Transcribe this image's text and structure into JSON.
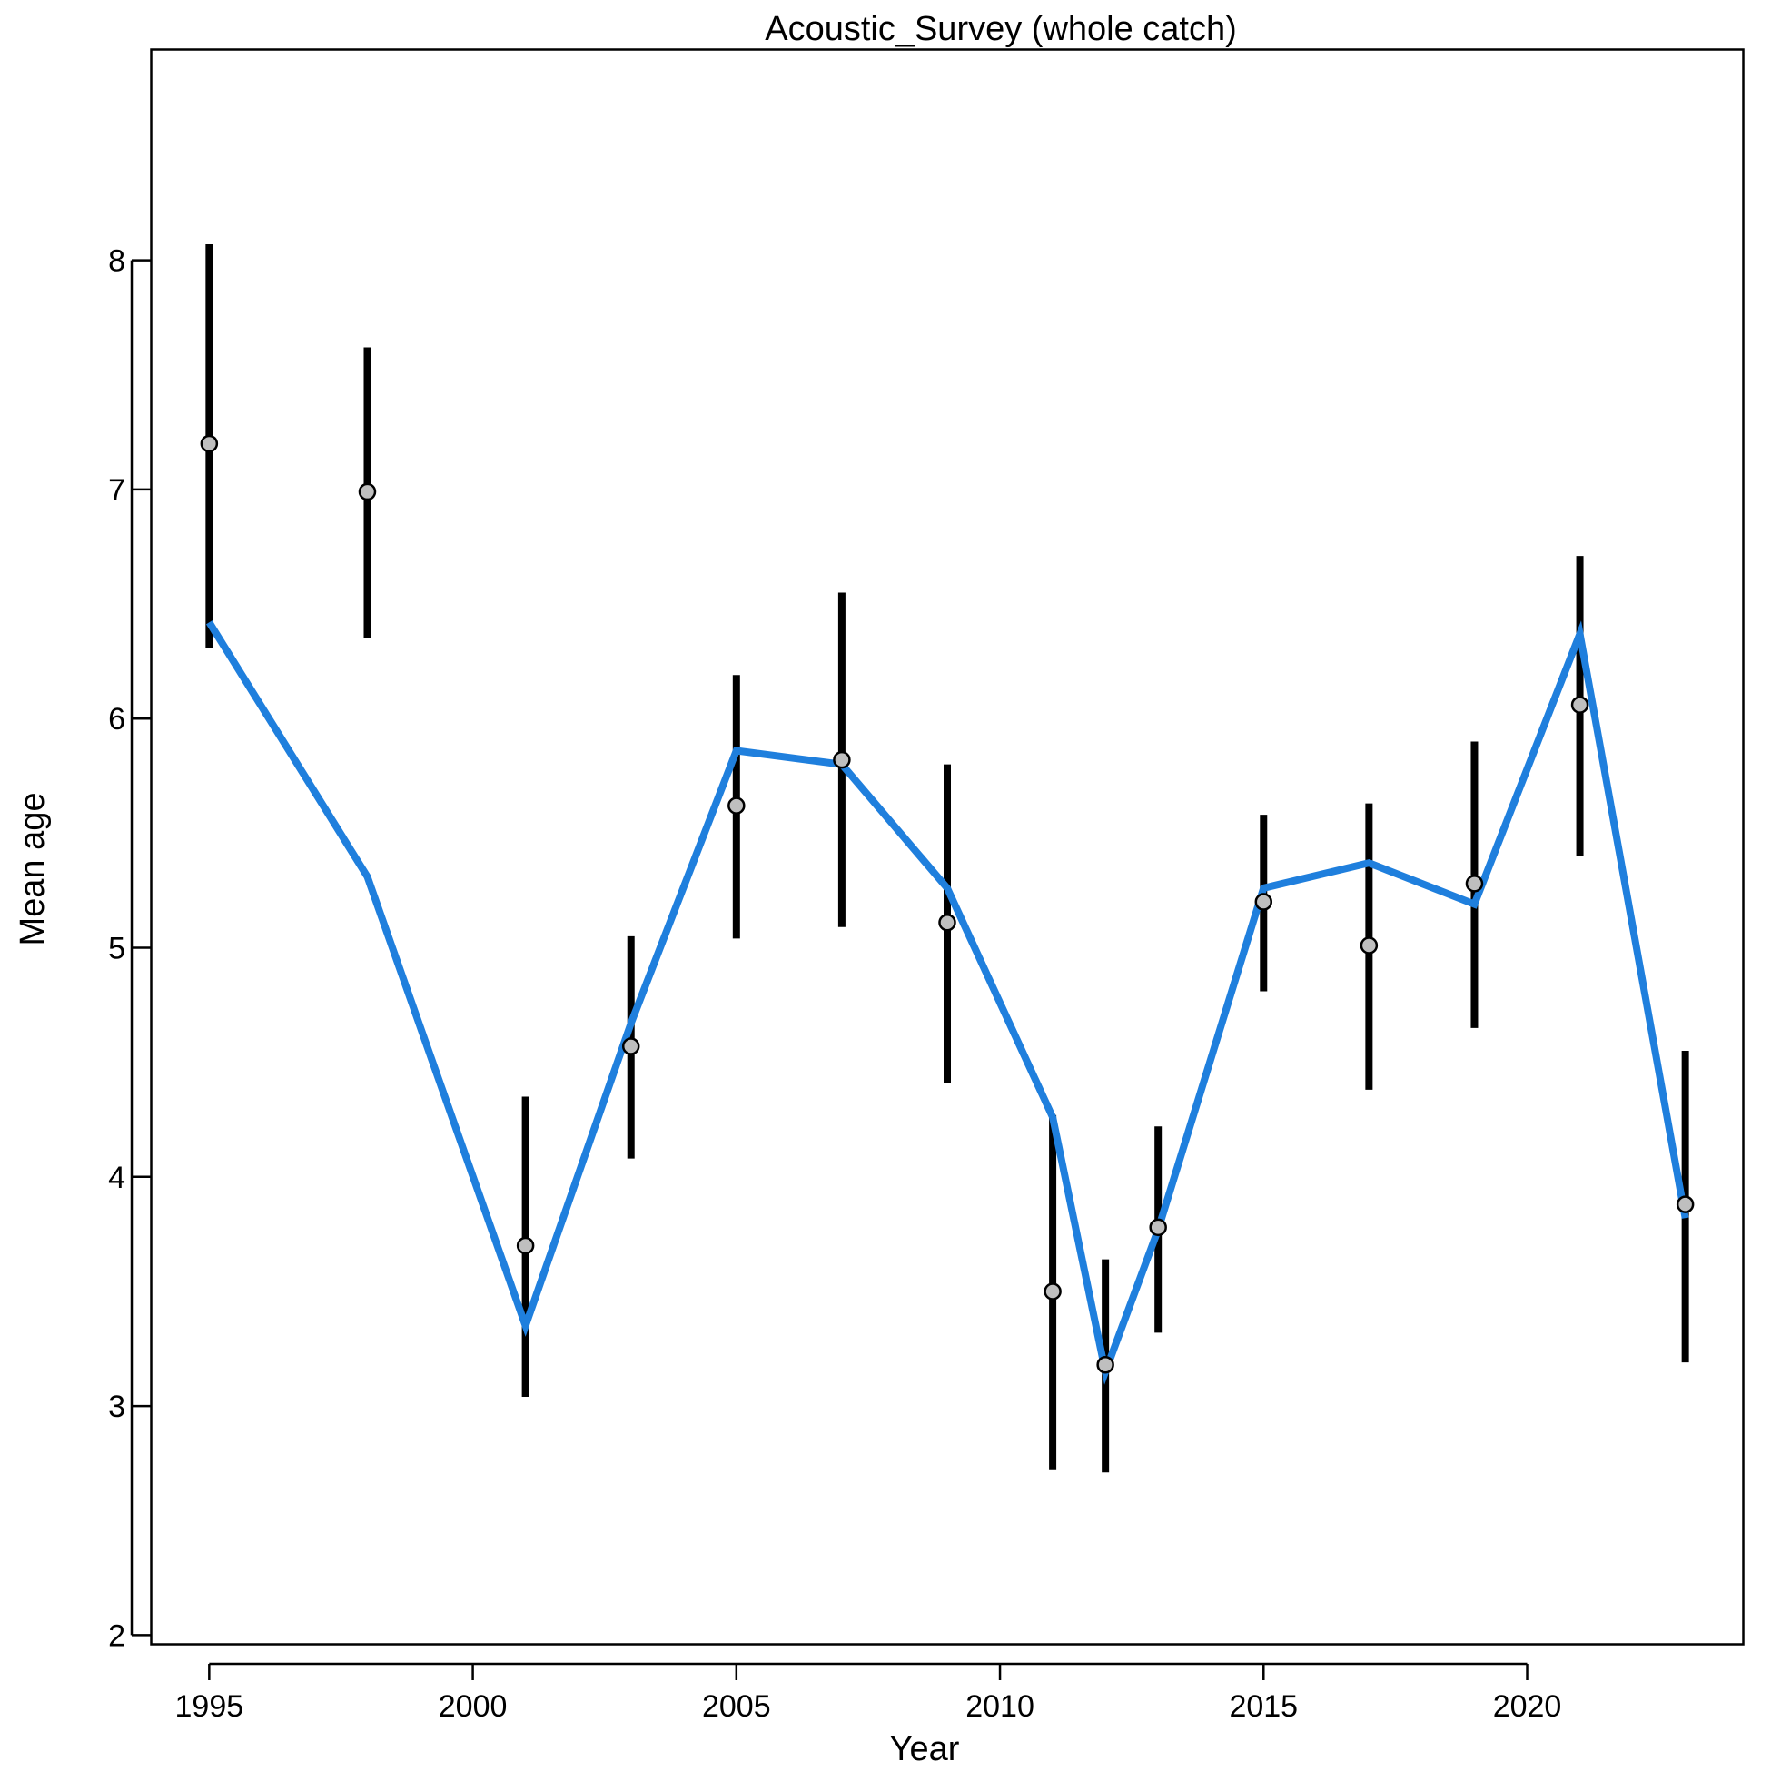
{
  "chart_data": {
    "type": "line",
    "title": "Acoustic_Survey (whole catch)",
    "xlabel": "Year",
    "ylabel": "Mean age",
    "xlim": [
      1993.9,
      2024.1
    ],
    "ylim": [
      1.96,
      8.92
    ],
    "x_ticks": [
      1995,
      2000,
      2005,
      2010,
      2015,
      2020
    ],
    "y_ticks": [
      2,
      3,
      4,
      5,
      6,
      7,
      8
    ],
    "grid": false,
    "legend": "none",
    "colors": {
      "expected_line": "#1f7fdd",
      "error_bar": "#000000",
      "point_fill": "#bfbfbf",
      "point_stroke": "#000000"
    },
    "series": [
      {
        "kind": "observed_with_interval",
        "x": [
          1995,
          1998,
          2001,
          2003,
          2005,
          2007,
          2009,
          2011,
          2012,
          2013,
          2015,
          2017,
          2019,
          2021,
          2023
        ],
        "y": [
          7.2,
          6.99,
          3.7,
          4.57,
          5.62,
          5.82,
          5.11,
          3.5,
          3.18,
          3.78,
          5.2,
          5.01,
          5.28,
          6.06,
          3.88
        ],
        "lower": [
          6.31,
          6.35,
          3.04,
          4.08,
          5.04,
          5.09,
          4.41,
          2.72,
          2.71,
          3.32,
          4.81,
          4.38,
          4.65,
          5.4,
          3.19
        ],
        "upper": [
          8.07,
          7.62,
          4.35,
          5.05,
          6.19,
          6.55,
          5.8,
          4.27,
          3.64,
          4.22,
          5.58,
          5.63,
          5.9,
          6.71,
          4.55
        ]
      },
      {
        "kind": "expected",
        "x": [
          1995,
          1998,
          2001,
          2003,
          2005,
          2007,
          2009,
          2011,
          2012,
          2013,
          2015,
          2017,
          2019,
          2021,
          2023
        ],
        "y": [
          6.42,
          5.31,
          3.35,
          4.67,
          5.86,
          5.8,
          5.26,
          4.26,
          3.15,
          3.77,
          5.26,
          5.37,
          5.19,
          6.37,
          3.82
        ]
      }
    ]
  }
}
